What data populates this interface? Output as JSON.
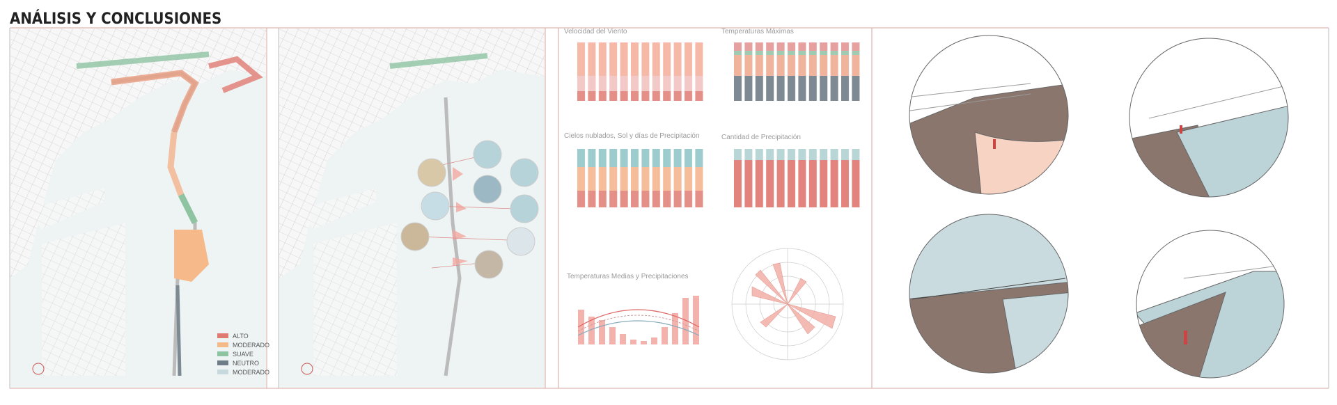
{
  "header": {
    "title": "ANÁLISIS Y CONCLUSIONES"
  },
  "map_legend": {
    "items": [
      "ALTO",
      "MODERADO",
      "SUAVE",
      "NEUTRO",
      "MODERADO"
    ]
  },
  "charts": {
    "titles": [
      "Velocidad del Viento",
      "Temperaturas Máximas",
      "Cielos nublados, Sol y días de Precipitación",
      "Cantidad de Precipitación",
      "Temperaturas Medias y Precipitaciones"
    ]
  }
}
